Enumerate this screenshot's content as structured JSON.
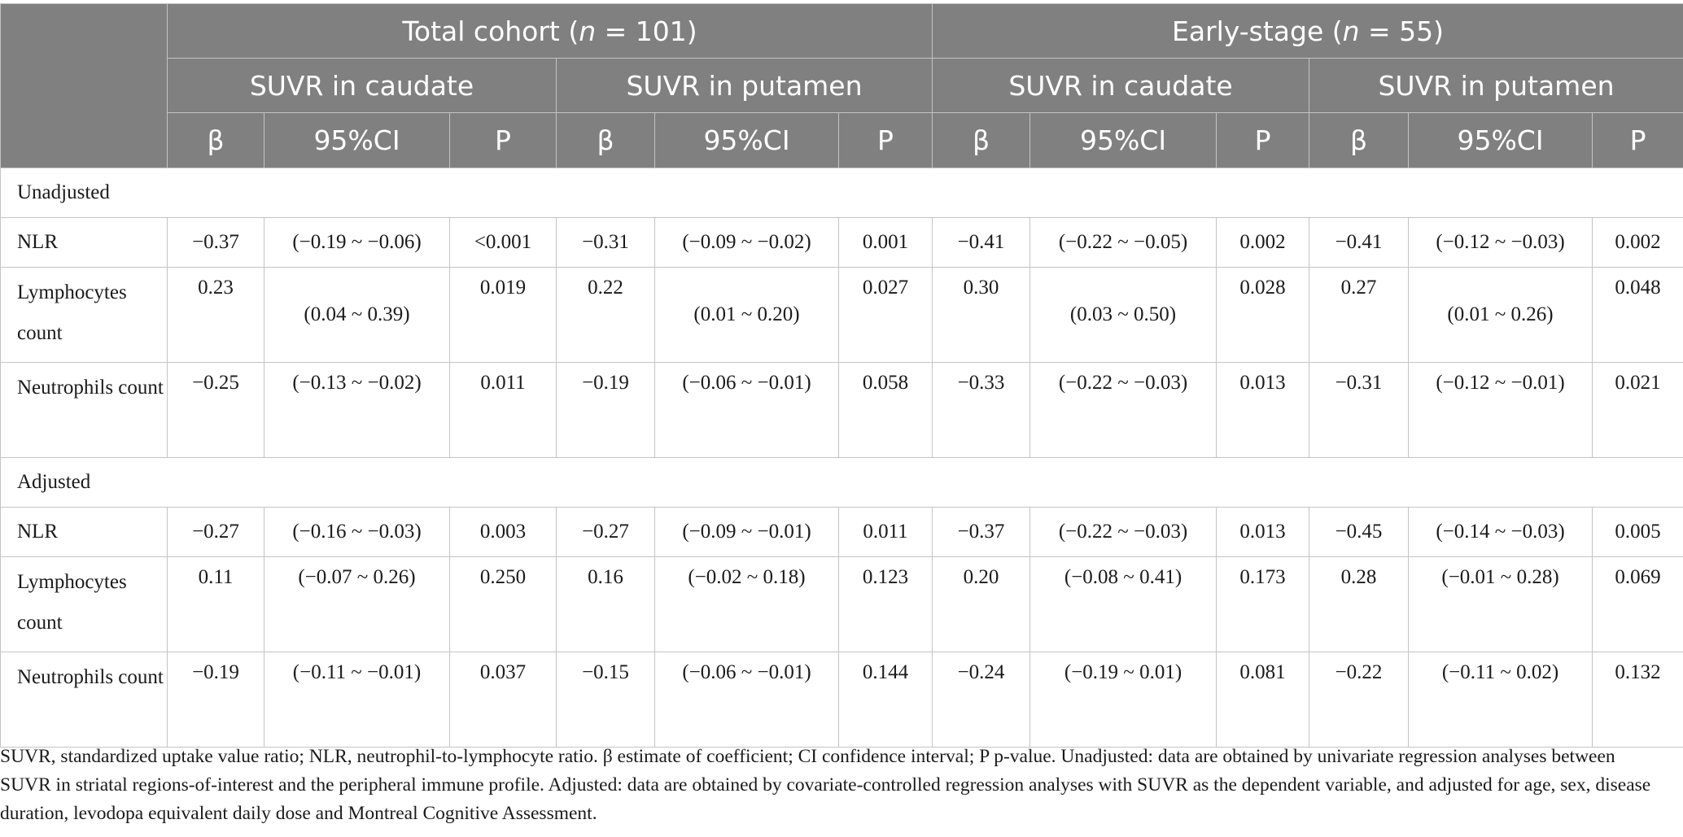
{
  "header": {
    "groups": [
      "Total cohort (",
      "n",
      " = 101)",
      "Early-stage (",
      "n",
      " = 55)"
    ],
    "group1_pre": "Total cohort (",
    "group1_n": "n",
    "group1_post": " = 101)",
    "group2_pre": "Early-stage (",
    "group2_n": "n",
    "group2_post": " = 55)",
    "regions": [
      "SUVR in caudate",
      "SUVR in putamen",
      "SUVR in caudate",
      "SUVR in putamen"
    ],
    "stats": [
      "β",
      "95%CI",
      "P",
      "β",
      "95%CI",
      "P",
      "β",
      "95%CI",
      "P",
      "β",
      "95%CI",
      "P"
    ]
  },
  "sections": [
    {
      "title": "Unadjusted",
      "rows": [
        {
          "label": "NLR",
          "cells": [
            "−0.37",
            "(−0.19 ~ −0.06)",
            "<0.001",
            "−0.31",
            "(−0.09 ~ −0.02)",
            "0.001",
            "−0.41",
            "(−0.22 ~ −0.05)",
            "0.002",
            "−0.41",
            "(−0.12 ~ −0.03)",
            "0.002"
          ]
        },
        {
          "label": "Lymphocytes count",
          "cells": [
            "0.23",
            "(0.04 ~ 0.39)",
            "0.019",
            "0.22",
            "(0.01 ~ 0.20)",
            "0.027",
            "0.30",
            "(0.03 ~ 0.50)",
            "0.028",
            "0.27",
            "(0.01 ~ 0.26)",
            "0.048"
          ]
        },
        {
          "label": "Neutrophils count",
          "cells": [
            "−0.25",
            "(−0.13 ~ −0.02)",
            "0.011",
            "−0.19",
            "(−0.06 ~ −0.01)",
            "0.058",
            "−0.33",
            "(−0.22 ~ −0.03)",
            "0.013",
            "−0.31",
            "(−0.12 ~ −0.01)",
            "0.021"
          ]
        }
      ]
    },
    {
      "title": "Adjusted",
      "rows": [
        {
          "label": "NLR",
          "cells": [
            "−0.27",
            "(−0.16 ~ −0.03)",
            "0.003",
            "−0.27",
            "(−0.09 ~ −0.01)",
            "0.011",
            "−0.37",
            "(−0.22 ~ −0.03)",
            "0.013",
            "−0.45",
            "(−0.14 ~ −0.03)",
            "0.005"
          ]
        },
        {
          "label": "Lymphocytes count",
          "cells": [
            "0.11",
            "(−0.07 ~ 0.26)",
            "0.250",
            "0.16",
            "(−0.02 ~ 0.18)",
            "0.123",
            "0.20",
            "(−0.08 ~ 0.41)",
            "0.173",
            "0.28",
            "(−0.01 ~ 0.28)",
            "0.069"
          ]
        },
        {
          "label": "Neutrophils count",
          "cells": [
            "−0.19",
            "(−0.11 ~ −0.01)",
            "0.037",
            "−0.15",
            "(−0.06 ~ −0.01)",
            "0.144",
            "−0.24",
            "(−0.19 ~ 0.01)",
            "0.081",
            "−0.22",
            "(−0.11 ~ 0.02)",
            "0.132"
          ]
        }
      ]
    }
  ],
  "footnote": "SUVR, standardized uptake value ratio; NLR, neutrophil-to-lymphocyte ratio. β estimate of coefficient; CI confidence interval; P p-value. Unadjusted: data are obtained by univariate regression analyses between SUVR in striatal regions-of-interest and the peripheral immune profile. Adjusted: data are obtained by covariate-controlled regression analyses with SUVR as the dependent variable, and adjusted for age, sex, disease duration, levodopa equivalent daily dose and Montreal Cognitive Assessment.",
  "colors": {
    "header_bg": "#808080",
    "header_text": "#ffffff",
    "border": "#c4c4c4"
  }
}
